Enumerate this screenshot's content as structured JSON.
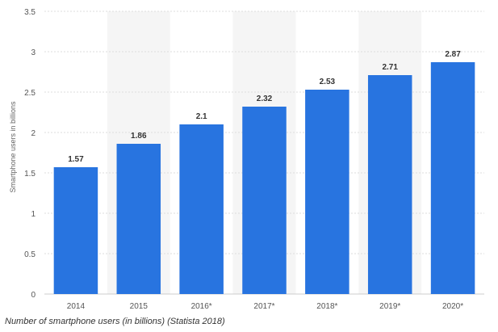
{
  "chart_data": {
    "type": "bar",
    "categories": [
      "2014",
      "2015",
      "2016*",
      "2017*",
      "2018*",
      "2019*",
      "2020*"
    ],
    "values": [
      1.57,
      1.86,
      2.1,
      2.32,
      2.53,
      2.71,
      2.87
    ],
    "value_labels": [
      "1.57",
      "1.86",
      "2.1",
      "2.32",
      "2.53",
      "2.71",
      "2.87"
    ],
    "title": "",
    "xlabel": "",
    "ylabel": "Smartphone users in billions",
    "ylim": [
      0,
      3.5
    ],
    "yticks": [
      0,
      0.5,
      1,
      1.5,
      2,
      2.5,
      3,
      3.5
    ],
    "ytick_labels": [
      "0",
      "0.5",
      "1",
      "1.5",
      "2",
      "2.5",
      "3",
      "3.5"
    ],
    "grid": true,
    "grid_style": "dashed horizontal",
    "legend": "none",
    "shaded_categories": [
      "2015",
      "2017*",
      "2019*"
    ],
    "bar_color": "#2874e0",
    "shade_color": "#f5f5f5",
    "grid_color": "#dddddd"
  },
  "caption": "Number of smartphone users (in billions) (Statista 2018)"
}
